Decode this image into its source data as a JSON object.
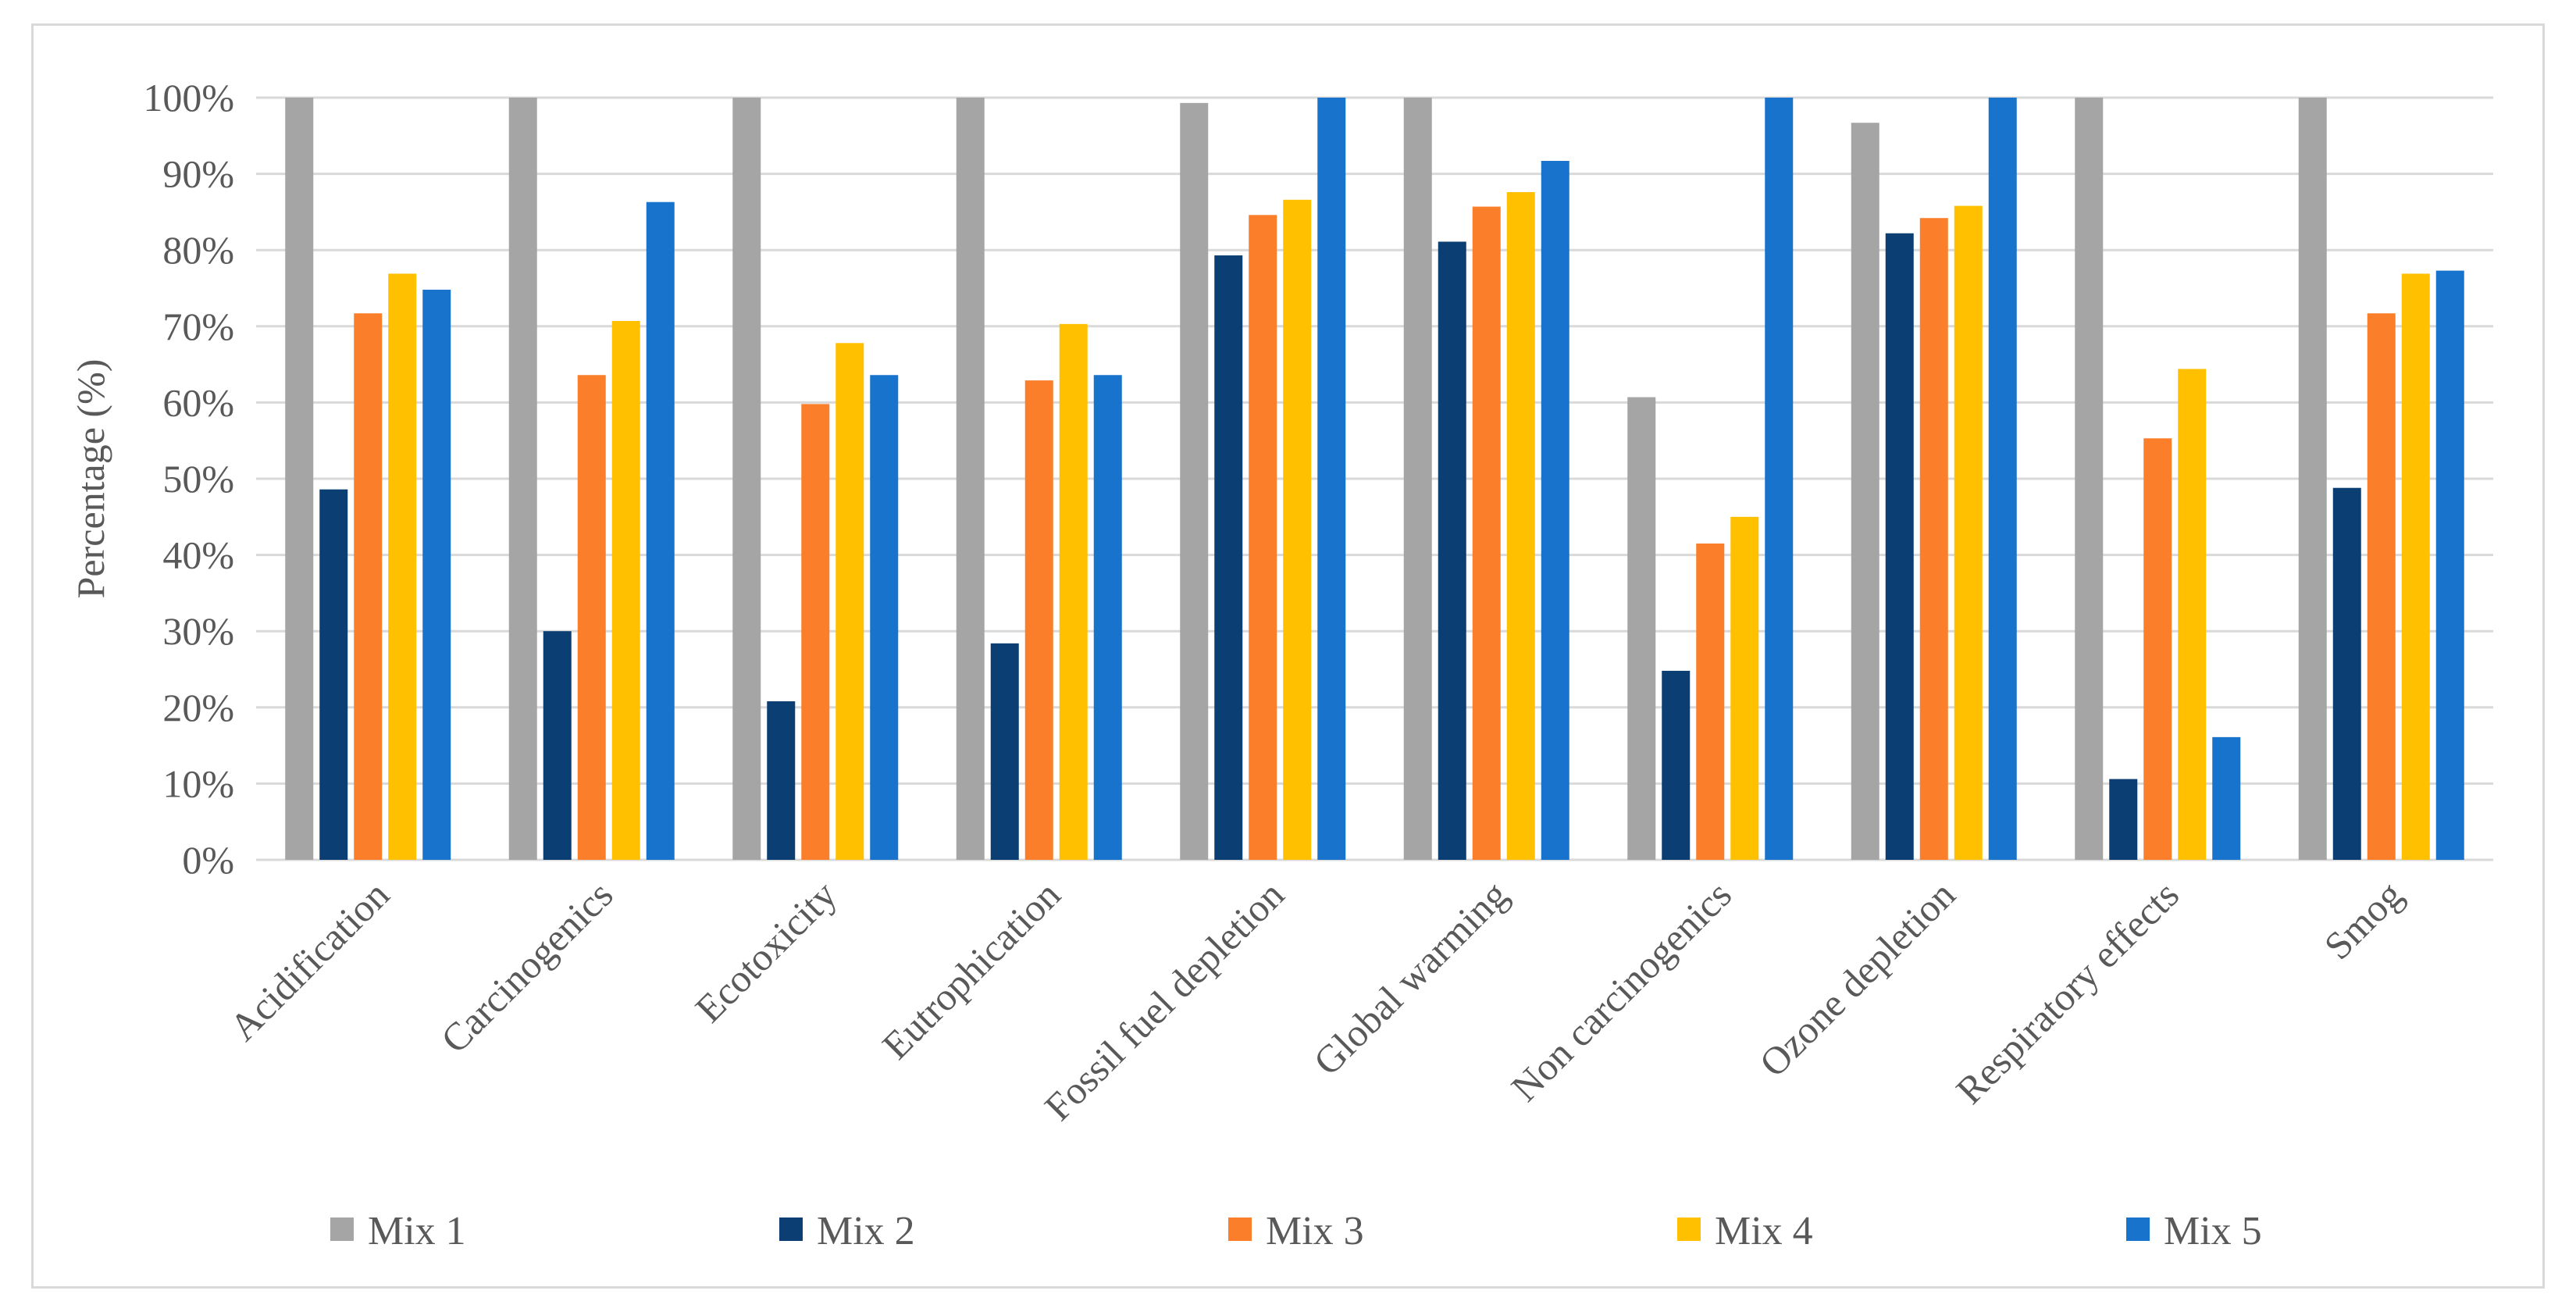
{
  "chart_data": {
    "type": "bar",
    "title": "",
    "xlabel": "",
    "ylabel": "Percentage (%)",
    "ylim": [
      0,
      100
    ],
    "ytick_step": 10,
    "ytick_suffix": "%",
    "grid": true,
    "legend_position": "bottom",
    "categories": [
      "Acidification",
      "Carcinogenics",
      "Ecotoxicity",
      "Eutrophication",
      "Fossil fuel depletion",
      "Global warming",
      "Non carcinogenics",
      "Ozone depletion",
      "Respiratory effects",
      "Smog"
    ],
    "series": [
      {
        "name": "Mix 1",
        "color": "#a5a5a5",
        "values": [
          100,
          100,
          100,
          100,
          99.3,
          100,
          60.7,
          96.7,
          100,
          100
        ]
      },
      {
        "name": "Mix 2",
        "color": "#0b3f73",
        "values": [
          48.6,
          30.0,
          20.8,
          28.4,
          79.3,
          81.1,
          24.8,
          82.2,
          10.6,
          48.8
        ]
      },
      {
        "name": "Mix 3",
        "color": "#fb7f2a",
        "values": [
          71.7,
          63.6,
          59.8,
          62.9,
          84.6,
          85.7,
          41.5,
          84.2,
          55.3,
          71.7
        ]
      },
      {
        "name": "Mix 4",
        "color": "#ffc000",
        "values": [
          76.9,
          70.7,
          67.8,
          70.3,
          86.6,
          87.6,
          45.0,
          85.8,
          64.4,
          76.9
        ]
      },
      {
        "name": "Mix 5",
        "color": "#1873cc",
        "values": [
          74.8,
          86.3,
          63.6,
          63.6,
          100,
          91.7,
          100,
          100,
          16.1,
          77.3
        ]
      }
    ]
  }
}
